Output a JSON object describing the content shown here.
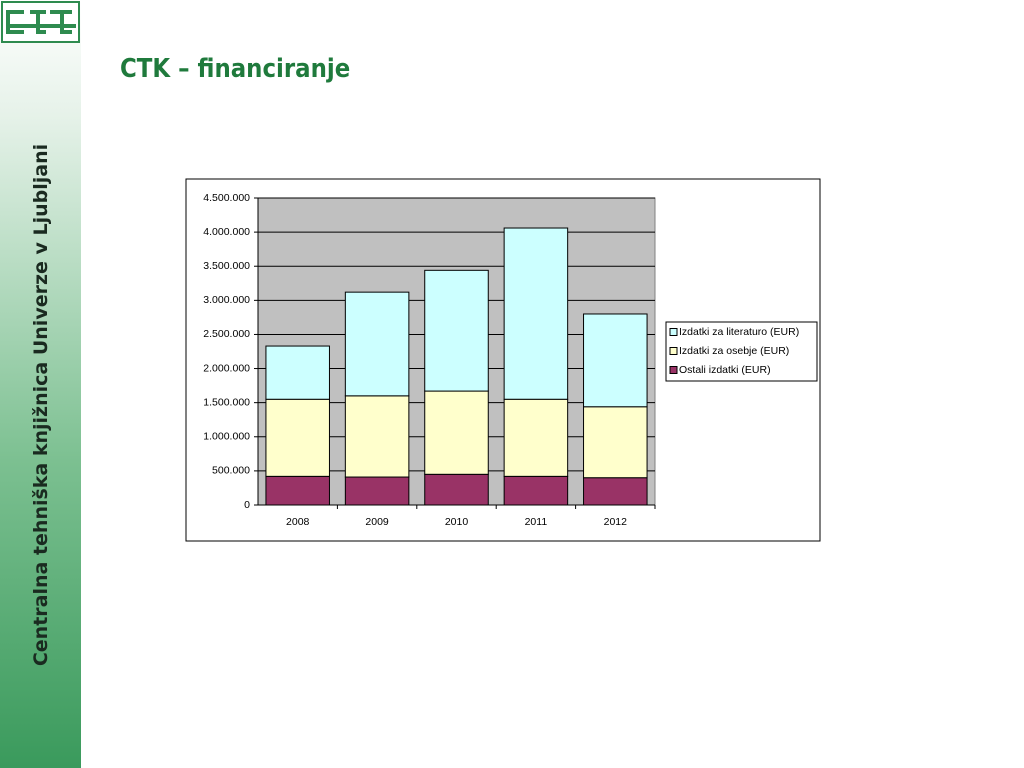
{
  "slide": {
    "title": "CTK – financiranje",
    "sidebar": "Centralna tehniška knjižnica Univerze v Ljubljani"
  },
  "chart_data": {
    "type": "stacked-bar",
    "categories": [
      "2008",
      "2009",
      "2010",
      "2011",
      "2012"
    ],
    "series": [
      {
        "name": "Izdatki za literaturo (EUR)",
        "color": "#ccffff",
        "values": [
          780000,
          1520000,
          1770000,
          2510000,
          1360000
        ]
      },
      {
        "name": "Izdatki za osebje (EUR)",
        "color": "#ffffcc",
        "values": [
          1130000,
          1190000,
          1220000,
          1130000,
          1040000
        ]
      },
      {
        "name": "Ostali izdatki (EUR)",
        "color": "#993366",
        "values": [
          420000,
          410000,
          450000,
          420000,
          400000
        ]
      }
    ],
    "ylim": [
      0,
      4500000
    ],
    "yticks": [
      0,
      {
        "value": 500000,
        "label": "500.000"
      },
      {
        "value": 1000000,
        "label": "1.000.000"
      },
      {
        "value": 1500000,
        "label": "1.500.000"
      },
      {
        "value": 2000000,
        "label": "2.000.000"
      },
      {
        "value": 2500000,
        "label": "2.500.000"
      },
      {
        "value": 3000000,
        "label": "3.000.000"
      },
      {
        "value": 3500000,
        "label": "3.500.000"
      },
      {
        "value": 4000000,
        "label": "4.000.000"
      },
      {
        "value": 4500000,
        "label": "4.500.000"
      }
    ],
    "grid": true,
    "plot_background": "#c0c0c0",
    "legend": "right"
  }
}
